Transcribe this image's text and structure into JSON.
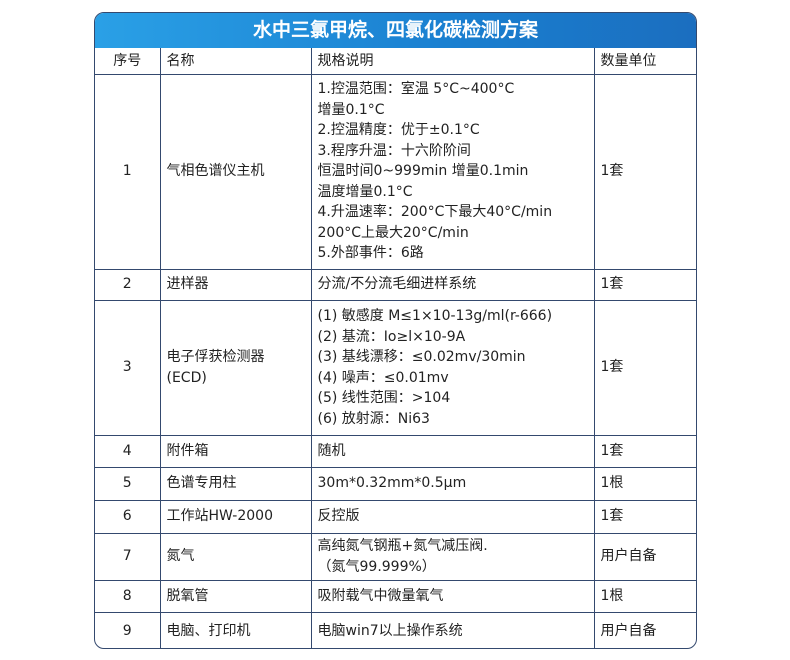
{
  "title": "水中三氯甲烷、四氯化碳检测方案",
  "headers": [
    "序号",
    "名称",
    "规格说明",
    "数量单位"
  ],
  "rows": [
    {
      "no": "1",
      "name": "气相色谱仪主机",
      "spec": [
        "1.控温范围：室温 5°C~400°C",
        "增量0.1°C",
        "2.控温精度：优于±0.1°C",
        "3.程序升温：十六阶阶间",
        "恒温时间0~999min 增量0.1min",
        "温度增量0.1°C",
        "4.升温速率：200°C下最大40°C/min",
        "200°C上最大20°C/min",
        "5.外部事件：6路"
      ],
      "qty": "1套"
    },
    {
      "no": "2",
      "name": "进样器",
      "spec": [
        "分流/不分流毛细进样系统"
      ],
      "qty": "1套"
    },
    {
      "no": "3",
      "name": "电子俘获检测器(ECD)",
      "spec": [
        "(1) 敏感度 M≤1×10-13g/ml(r-666)",
        "(2) 基流：Io≥l×10-9A",
        "(3) 基线漂移：≤0.02mv/30min",
        "(4) 噪声：≤0.01mv",
        "(5) 线性范围：>104",
        "(6) 放射源：Ni63"
      ],
      "qty": "1套"
    },
    {
      "no": "4",
      "name": "附件箱",
      "spec": [
        "随机"
      ],
      "qty": "1套"
    },
    {
      "no": "5",
      "name": "色谱专用柱",
      "spec": [
        "30m*0.32mm*0.5μm"
      ],
      "qty": "1根"
    },
    {
      "no": "6",
      "name": "工作站HW-2000",
      "spec": [
        "反控版"
      ],
      "qty": "1套"
    },
    {
      "no": "7",
      "name": "氮气",
      "spec": [
        "高纯氮气钢瓶+氮气减压阀.",
        "（氮气99.999%）"
      ],
      "qty": "用户自备"
    },
    {
      "no": "8",
      "name": "脱氧管",
      "spec": [
        "吸附载气中微量氧气"
      ],
      "qty": "1根"
    },
    {
      "no": "9",
      "name": "电脑、打印机",
      "spec": [
        "电脑win7以上操作系统"
      ],
      "qty": "用户自备"
    }
  ]
}
